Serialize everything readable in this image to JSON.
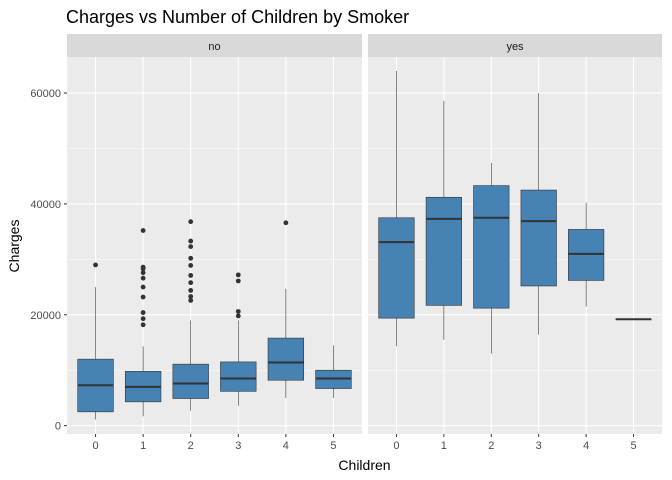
{
  "chart_data": {
    "type": "boxplot",
    "title": "Charges vs Number of Children by Smoker",
    "xlabel": "Children",
    "ylabel": "Charges",
    "categories": [
      "0",
      "1",
      "2",
      "3",
      "4",
      "5"
    ],
    "y_ticks": [
      0,
      20000,
      40000,
      60000
    ],
    "y_tick_labels": [
      "0",
      "20000",
      "40000",
      "60000"
    ],
    "ylim": [
      -1500,
      66500
    ],
    "colors": {
      "box_fill": "#4682b4",
      "panel_bg": "#ebebeb",
      "strip_bg": "#d9d9d9",
      "grid": "#ffffff",
      "line": "#333333"
    },
    "facets": [
      {
        "label": "no",
        "boxes": [
          {
            "category": "0",
            "min": 1100,
            "q1": 2500,
            "median": 7300,
            "q3": 12000,
            "max": 25000,
            "outliers": [
              29000
            ]
          },
          {
            "category": "1",
            "min": 1700,
            "q1": 4300,
            "median": 7000,
            "q3": 9800,
            "max": 14300,
            "outliers": [
              18200,
              19300,
              20400,
              23200,
              25000,
              26600,
              27600,
              28300,
              28600,
              35200
            ]
          },
          {
            "category": "2",
            "min": 2700,
            "q1": 4900,
            "median": 7600,
            "q3": 11100,
            "max": 19000,
            "outliers": [
              22600,
              23300,
              24400,
              25800,
              27100,
              28900,
              30200,
              32300,
              33300,
              36800
            ]
          },
          {
            "category": "3",
            "min": 3600,
            "q1": 6200,
            "median": 8500,
            "q3": 11500,
            "max": 19000,
            "outliers": [
              19800,
              20600,
              26100,
              27200
            ]
          },
          {
            "category": "4",
            "min": 5000,
            "q1": 8200,
            "median": 11400,
            "q3": 15800,
            "max": 24700,
            "outliers": [
              36600
            ]
          },
          {
            "category": "5",
            "min": 5000,
            "q1": 6700,
            "median": 8500,
            "q3": 10000,
            "max": 14500,
            "outliers": []
          }
        ]
      },
      {
        "label": "yes",
        "boxes": [
          {
            "category": "0",
            "min": 14300,
            "q1": 19400,
            "median": 33100,
            "q3": 37500,
            "max": 64000,
            "outliers": []
          },
          {
            "category": "1",
            "min": 15500,
            "q1": 21700,
            "median": 37300,
            "q3": 41200,
            "max": 58600,
            "outliers": []
          },
          {
            "category": "2",
            "min": 13000,
            "q1": 21200,
            "median": 37500,
            "q3": 43300,
            "max": 47400,
            "outliers": []
          },
          {
            "category": "3",
            "min": 16400,
            "q1": 25200,
            "median": 36900,
            "q3": 42500,
            "max": 60000,
            "outliers": []
          },
          {
            "category": "4",
            "min": 21500,
            "q1": 26200,
            "median": 31000,
            "q3": 35400,
            "max": 40200,
            "outliers": []
          },
          {
            "category": "5",
            "min": 19200,
            "q1": 19200,
            "median": 19200,
            "q3": 19200,
            "max": 19200,
            "outliers": []
          }
        ]
      }
    ]
  }
}
